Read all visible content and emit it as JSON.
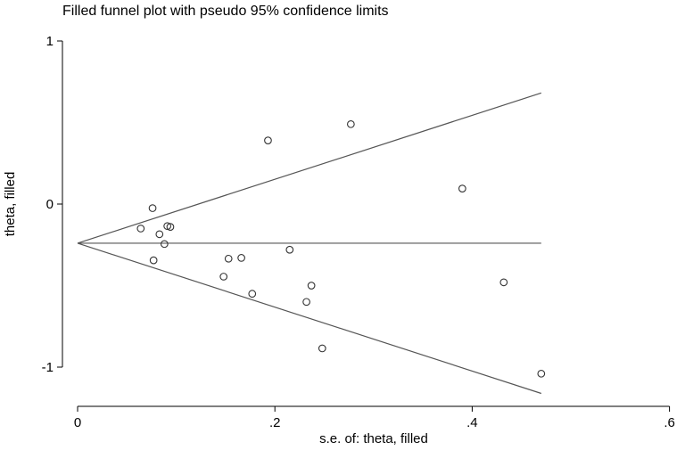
{
  "chart_data": {
    "type": "scatter",
    "title": "Filled funnel plot with pseudo 95% confidence limits",
    "xlabel": "s.e. of: theta, filled",
    "ylabel": "theta, filled",
    "xlim": [
      -0.02,
      0.6
    ],
    "ylim": [
      -1.25,
      1.0
    ],
    "x_ticks": [
      0,
      0.2,
      0.4,
      0.6
    ],
    "x_tick_labels": [
      "0",
      ".2",
      ".4",
      ".6"
    ],
    "y_ticks": [
      -1,
      0,
      1
    ],
    "y_tick_labels": [
      "-1",
      "0",
      "1"
    ],
    "grid": false,
    "pooled_estimate": -0.24,
    "funnel_se_max": 0.47,
    "points": [
      {
        "x": 0.064,
        "y": -0.15
      },
      {
        "x": 0.076,
        "y": -0.025
      },
      {
        "x": 0.077,
        "y": -0.345
      },
      {
        "x": 0.083,
        "y": -0.185
      },
      {
        "x": 0.088,
        "y": -0.245
      },
      {
        "x": 0.091,
        "y": -0.135
      },
      {
        "x": 0.094,
        "y": -0.14
      },
      {
        "x": 0.148,
        "y": -0.445
      },
      {
        "x": 0.153,
        "y": -0.335
      },
      {
        "x": 0.166,
        "y": -0.33
      },
      {
        "x": 0.177,
        "y": -0.55
      },
      {
        "x": 0.193,
        "y": 0.39
      },
      {
        "x": 0.215,
        "y": -0.28
      },
      {
        "x": 0.232,
        "y": -0.6
      },
      {
        "x": 0.237,
        "y": -0.5
      },
      {
        "x": 0.248,
        "y": -0.885
      },
      {
        "x": 0.277,
        "y": 0.49
      },
      {
        "x": 0.39,
        "y": 0.095
      },
      {
        "x": 0.432,
        "y": -0.48
      },
      {
        "x": 0.47,
        "y": -1.04
      }
    ]
  }
}
